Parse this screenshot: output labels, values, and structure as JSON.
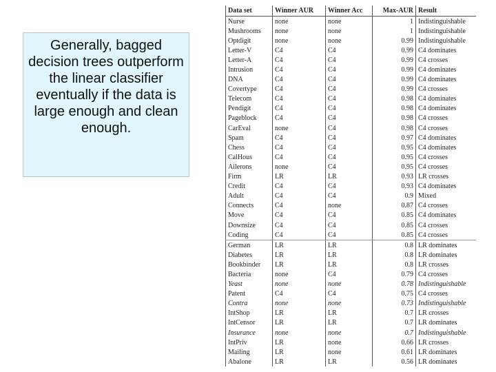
{
  "callout": {
    "text": "Generally, bagged decision trees outperform the linear classifier eventually if the data is large enough and clean enough."
  },
  "table": {
    "header": [
      "Data set",
      "Winner AUR",
      "Winner Acc",
      "Max-AUR",
      "Result"
    ],
    "rows": [
      [
        "Nurse",
        "none",
        "none",
        "1",
        "Indistinguishable"
      ],
      [
        "Mushrooms",
        "none",
        "none",
        "1",
        "Indistinguishable"
      ],
      [
        "Optdigit",
        "none",
        "none",
        "0.99",
        "Indistinguishable"
      ],
      [
        "Letter-V",
        "C4",
        "C4",
        "0.99",
        "C4 dominates"
      ],
      [
        "Letter-A",
        "C4",
        "C4",
        "0.99",
        "C4 crosses"
      ],
      [
        "Intrusion",
        "C4",
        "C4",
        "0.99",
        "C4 dominates"
      ],
      [
        "DNA",
        "C4",
        "C4",
        "0.99",
        "C4 dominates"
      ],
      [
        "Covertype",
        "C4",
        "C4",
        "0.99",
        "C4 crosses"
      ],
      [
        "Telecom",
        "C4",
        "C4",
        "0.98",
        "C4 dominates"
      ],
      [
        "Pendigit",
        "C4",
        "C4",
        "0.98",
        "C4 dominates"
      ],
      [
        "Pageblock",
        "C4",
        "C4",
        "0.98",
        "C4 crosses"
      ],
      [
        "CarEval",
        "none",
        "C4",
        "0.98",
        "C4 crosses"
      ],
      [
        "Spam",
        "C4",
        "C4",
        "0.97",
        "C4 dominates"
      ],
      [
        "Chess",
        "C4",
        "C4",
        "0.95",
        "C4 dominates"
      ],
      [
        "CalHous",
        "C4",
        "C4",
        "0.95",
        "C4 crosses"
      ],
      [
        "Ailerons",
        "none",
        "C4",
        "0.95",
        "C4 crosses"
      ],
      [
        "Firm",
        "LR",
        "LR",
        "0.93",
        "LR crosses"
      ],
      [
        "Credit",
        "C4",
        "C4",
        "0.93",
        "C4 dominates"
      ],
      [
        "Adult",
        "C4",
        "C4",
        "0.9",
        "Mixed"
      ],
      [
        "Connects",
        "C4",
        "none",
        "0.87",
        "C4 crosses"
      ],
      [
        "Move",
        "C4",
        "C4",
        "0.85",
        "C4 dominates"
      ],
      [
        "Downsize",
        "C4",
        "C4",
        "0.85",
        "C4 crosses"
      ],
      [
        "Coding",
        "C4",
        "C4",
        "0.85",
        "C4 crosses"
      ],
      [
        "German",
        "LR",
        "LR",
        "0.8",
        "LR dominates"
      ],
      [
        "Diabetes",
        "LR",
        "LR",
        "0.8",
        "LR dominates"
      ],
      [
        "Bookbinder",
        "LR",
        "LR",
        "0.8",
        "LR crosses"
      ],
      [
        "Bacteria",
        "none",
        "C4",
        "0.79",
        "C4 crosses"
      ],
      [
        "Yeast",
        "none",
        "none",
        "0.78",
        "Indistinguishable"
      ],
      [
        "Patent",
        "C4",
        "C4",
        "0.75",
        "C4 crosses"
      ],
      [
        "Contra",
        "none",
        "none",
        "0.73",
        "Indistinguishable"
      ],
      [
        "IntShop",
        "LR",
        "LR",
        "0.7",
        "LR crosses"
      ],
      [
        "IntCensor",
        "LR",
        "LR",
        "0.7",
        "LR dominates"
      ],
      [
        "Insurance",
        "none",
        "none",
        "0.7",
        "Indistinguishable"
      ],
      [
        "IntPriv",
        "LR",
        "none",
        "0.66",
        "LR crosses"
      ],
      [
        "Mailing",
        "LR",
        "none",
        "0.61",
        "LR dominates"
      ],
      [
        "Abalone",
        "LR",
        "LR",
        "0.56",
        "LR dominates"
      ]
    ]
  }
}
